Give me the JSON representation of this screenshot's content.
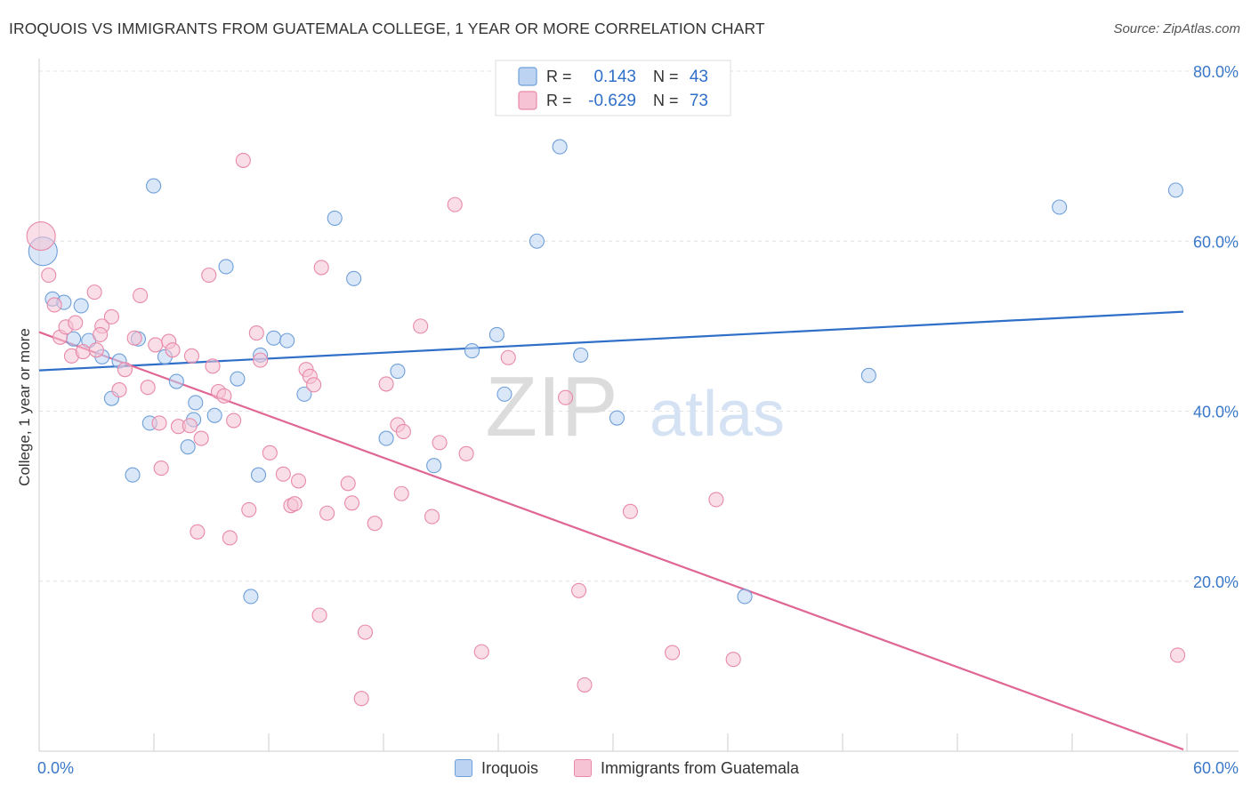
{
  "chart_data": {
    "type": "scatter",
    "title": "IROQUOIS VS IMMIGRANTS FROM GUATEMALA COLLEGE, 1 YEAR OR MORE CORRELATION CHART",
    "source": "Source: ZipAtlas.com",
    "xlabel": "",
    "ylabel": "College, 1 year or more",
    "xlim": [
      0,
      60
    ],
    "ylim": [
      0,
      80
    ],
    "x_tick_labels": [
      "0.0%",
      "60.0%"
    ],
    "y_tick_labels": [
      "20.0%",
      "40.0%",
      "60.0%",
      "80.0%"
    ],
    "y_ticks": [
      20,
      40,
      60,
      80
    ],
    "watermark": {
      "zip": "ZIP",
      "atlas": "atlas"
    },
    "legend_top": [
      {
        "r_label": "R =",
        "r_value": "0.143",
        "n_label": "N =",
        "n_value": "43"
      },
      {
        "r_label": "R =",
        "r_value": "-0.629",
        "n_label": "N =",
        "n_value": "73"
      }
    ],
    "series": [
      {
        "name": "Iroquois",
        "color": "#6e9fd9",
        "fill": "#bcd3f2",
        "line_color": "#2f6fc8",
        "r": 0.143,
        "n": 43,
        "trend": {
          "x0": 0,
          "y0": 44.8,
          "x1": 60,
          "y1": 51.7
        },
        "points": [
          [
            0.2,
            58.8,
            "big"
          ],
          [
            0.7,
            53.2
          ],
          [
            1.3,
            52.8
          ],
          [
            2.2,
            52.4
          ],
          [
            1.8,
            48.5
          ],
          [
            2.6,
            48.3
          ],
          [
            3.3,
            46.4
          ],
          [
            4.2,
            45.9
          ],
          [
            5.2,
            48.5
          ],
          [
            3.8,
            41.5
          ],
          [
            6.0,
            66.5
          ],
          [
            6.6,
            46.4
          ],
          [
            7.2,
            43.5
          ],
          [
            5.8,
            38.6
          ],
          [
            4.9,
            32.5
          ],
          [
            7.8,
            35.8
          ],
          [
            8.2,
            41.0
          ],
          [
            8.1,
            39.0
          ],
          [
            9.2,
            39.5
          ],
          [
            9.8,
            57.0
          ],
          [
            10.4,
            43.8
          ],
          [
            11.6,
            46.6
          ],
          [
            12.3,
            48.6
          ],
          [
            13.0,
            48.3
          ],
          [
            11.5,
            32.5
          ],
          [
            11.1,
            18.2
          ],
          [
            13.9,
            42.0
          ],
          [
            15.5,
            62.7
          ],
          [
            16.5,
            55.6
          ],
          [
            18.8,
            44.7
          ],
          [
            18.2,
            36.8
          ],
          [
            20.7,
            33.6
          ],
          [
            22.7,
            47.1
          ],
          [
            24.0,
            49.0
          ],
          [
            24.4,
            42.0
          ],
          [
            26.1,
            60.0
          ],
          [
            27.3,
            71.1
          ],
          [
            28.4,
            46.6
          ],
          [
            30.3,
            39.2
          ],
          [
            37.0,
            18.2
          ],
          [
            43.5,
            44.2
          ],
          [
            53.5,
            64.0
          ],
          [
            59.6,
            66.0
          ]
        ]
      },
      {
        "name": "Immigrants from Guatemala",
        "color": "#e889a8",
        "fill": "#f6c3d4",
        "line_color": "#e06694",
        "r": -0.629,
        "n": 73,
        "trend": {
          "x0": 0,
          "y0": 49.3,
          "x1": 60,
          "y1": 0.2
        },
        "points": [
          [
            0.1,
            60.6,
            "big"
          ],
          [
            0.5,
            56.0
          ],
          [
            0.8,
            52.5
          ],
          [
            1.1,
            48.7
          ],
          [
            1.4,
            49.9
          ],
          [
            1.9,
            50.4
          ],
          [
            1.7,
            46.5
          ],
          [
            2.3,
            47.0
          ],
          [
            2.9,
            54.0
          ],
          [
            3.3,
            50.0
          ],
          [
            3.8,
            51.1
          ],
          [
            3.0,
            47.2
          ],
          [
            3.2,
            49.0
          ],
          [
            4.2,
            42.5
          ],
          [
            4.5,
            44.9
          ],
          [
            5.0,
            48.6
          ],
          [
            5.3,
            53.6
          ],
          [
            5.7,
            42.8
          ],
          [
            6.1,
            47.8
          ],
          [
            6.3,
            38.6
          ],
          [
            6.4,
            33.3
          ],
          [
            6.8,
            48.2
          ],
          [
            7.0,
            47.2
          ],
          [
            7.3,
            38.2
          ],
          [
            7.9,
            38.3
          ],
          [
            8.0,
            46.5
          ],
          [
            8.3,
            25.8
          ],
          [
            8.5,
            36.8
          ],
          [
            8.9,
            56.0
          ],
          [
            9.1,
            45.3
          ],
          [
            9.4,
            42.3
          ],
          [
            9.7,
            41.8
          ],
          [
            10.0,
            25.1
          ],
          [
            10.2,
            38.9
          ],
          [
            10.7,
            69.5
          ],
          [
            11.0,
            28.4
          ],
          [
            11.4,
            49.2
          ],
          [
            11.6,
            46.0
          ],
          [
            12.1,
            35.1
          ],
          [
            12.8,
            32.6
          ],
          [
            13.2,
            28.9
          ],
          [
            13.4,
            29.1
          ],
          [
            13.6,
            31.8
          ],
          [
            14.0,
            44.9
          ],
          [
            14.2,
            44.1
          ],
          [
            14.4,
            43.1
          ],
          [
            14.7,
            16.0
          ],
          [
            14.8,
            56.9
          ],
          [
            15.1,
            28.0
          ],
          [
            16.2,
            31.5
          ],
          [
            16.4,
            29.2
          ],
          [
            16.9,
            6.2
          ],
          [
            17.1,
            14.0
          ],
          [
            17.6,
            26.8
          ],
          [
            18.2,
            43.2
          ],
          [
            18.8,
            38.4
          ],
          [
            19.1,
            37.6
          ],
          [
            19.0,
            30.3
          ],
          [
            20.0,
            50.0
          ],
          [
            20.6,
            27.6
          ],
          [
            21.0,
            36.3
          ],
          [
            21.8,
            64.3
          ],
          [
            22.4,
            35.0
          ],
          [
            23.2,
            11.7
          ],
          [
            24.6,
            46.3
          ],
          [
            28.3,
            18.9
          ],
          [
            28.6,
            7.8
          ],
          [
            31.0,
            28.2
          ],
          [
            33.2,
            11.6
          ],
          [
            35.5,
            29.6
          ],
          [
            36.4,
            10.8
          ],
          [
            59.7,
            11.3
          ],
          [
            27.6,
            41.6
          ]
        ]
      }
    ]
  }
}
